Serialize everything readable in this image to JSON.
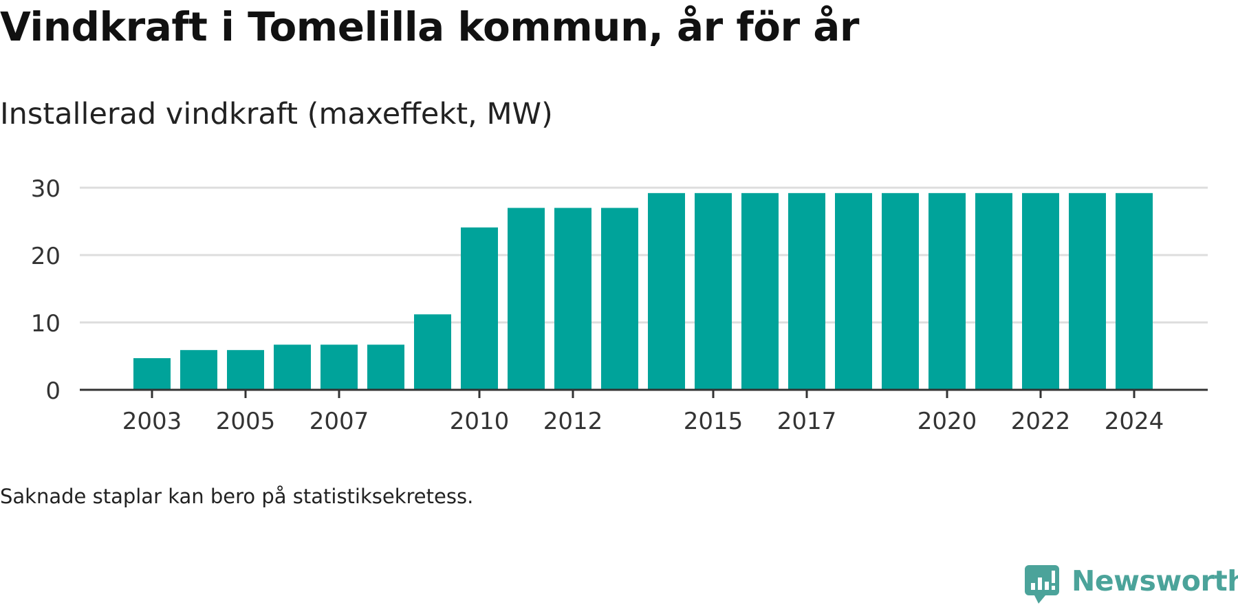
{
  "chart_data": {
    "type": "bar",
    "title": "Vindkraft i Tomelilla kommun, år för år",
    "subtitle": "Installerad vindkraft (maxeffekt, MW)",
    "categories": [
      "2003",
      "2004",
      "2005",
      "2006",
      "2007",
      "2008",
      "2009",
      "2010",
      "2011",
      "2012",
      "2013",
      "2014",
      "2015",
      "2016",
      "2017",
      "2018",
      "2019",
      "2020",
      "2021",
      "2022",
      "2023",
      "2024"
    ],
    "values": [
      4.7,
      5.9,
      5.9,
      6.7,
      6.7,
      6.7,
      11.2,
      24.1,
      27,
      27,
      27,
      29.2,
      29.2,
      29.2,
      29.2,
      29.2,
      29.2,
      29.2,
      29.2,
      29.2,
      29.2,
      29.2
    ],
    "x_tick_labels": [
      "2003",
      "2005",
      "2007",
      "2010",
      "2012",
      "2015",
      "2017",
      "2020",
      "2022",
      "2024"
    ],
    "y_ticks": [
      0,
      10,
      20,
      30
    ],
    "ylim": [
      0,
      30
    ],
    "grid": true,
    "bar_color": "#00a39a",
    "note": "Saknade staplar kan bero på statistiksekretess."
  },
  "brand": {
    "name": "Newsworthy",
    "color": "#4ba39a"
  }
}
